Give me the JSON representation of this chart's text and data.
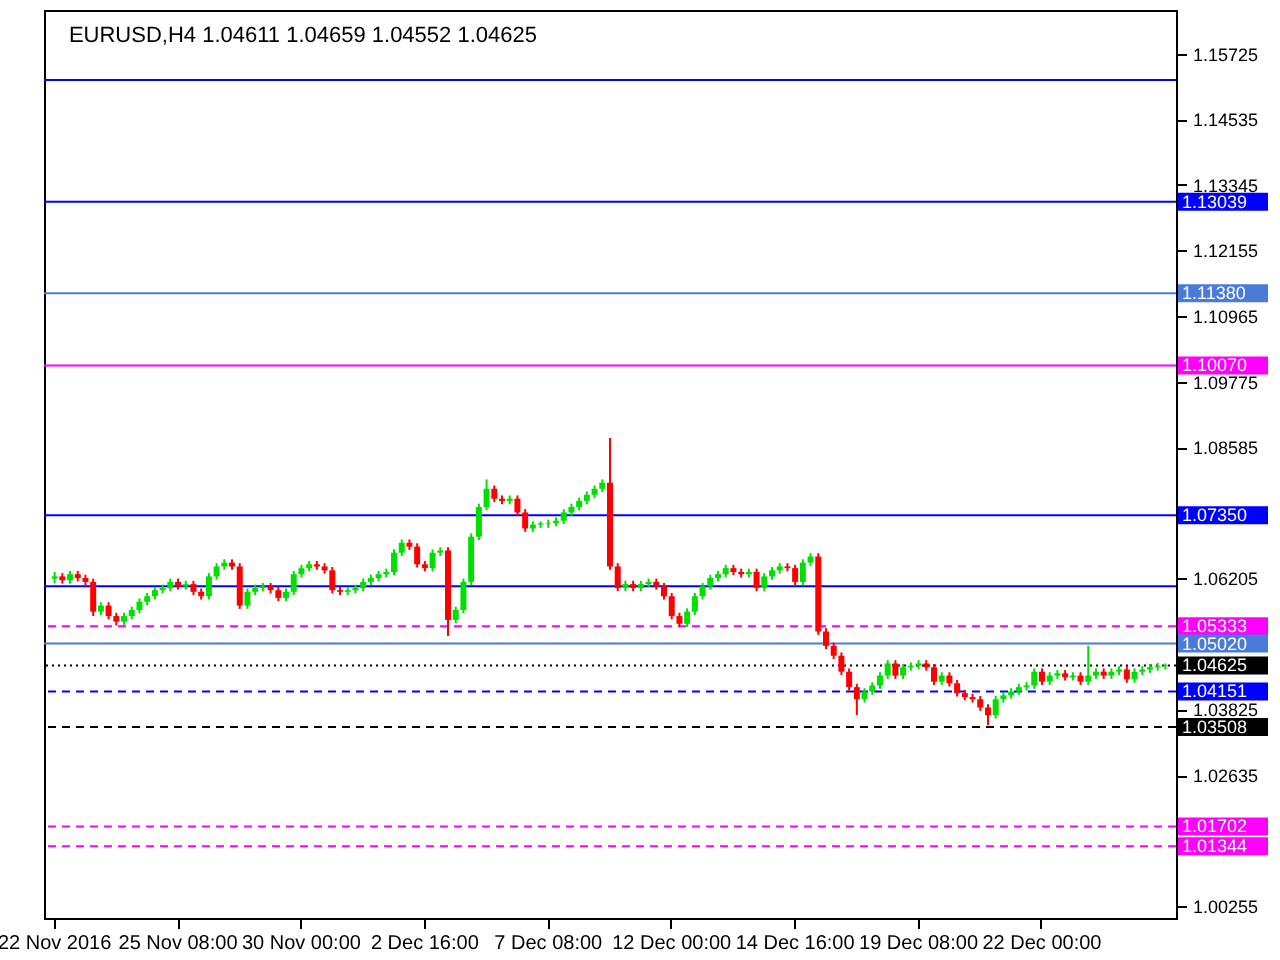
{
  "chart_data": {
    "type": "candlestick",
    "title": "EURUSD,H4  1.04611 1.04659 1.04552 1.04625",
    "categories": [
      "22 Nov 2016",
      null,
      null,
      null,
      null,
      null,
      null,
      null,
      null,
      null,
      null,
      null,
      null,
      null,
      null,
      null,
      "25 Nov 08:00",
      null,
      null,
      null,
      null,
      null,
      null,
      null,
      null,
      null,
      null,
      null,
      null,
      null,
      null,
      null,
      "30 Nov 00:00",
      null,
      null,
      null,
      null,
      null,
      null,
      null,
      null,
      null,
      null,
      null,
      null,
      null,
      null,
      null,
      "2 Dec 16:00",
      null,
      null,
      null,
      null,
      null,
      null,
      null,
      null,
      null,
      null,
      null,
      null,
      null,
      null,
      null,
      "7 Dec 08:00",
      null,
      null,
      null,
      null,
      null,
      null,
      null,
      null,
      null,
      null,
      null,
      null,
      null,
      null,
      null,
      "12 Dec 00:00",
      null,
      null,
      null,
      null,
      null,
      null,
      null,
      null,
      null,
      null,
      null,
      null,
      null,
      null,
      null,
      "14 Dec 16:00",
      null,
      null,
      null,
      null,
      null,
      null,
      null,
      null,
      null,
      null,
      null,
      null,
      null,
      null,
      null,
      "19 Dec 08:00",
      null,
      null,
      null,
      null,
      null,
      null,
      null,
      null,
      null,
      null,
      null,
      null,
      null,
      null,
      null,
      "22 Dec 00:00",
      null,
      null,
      null,
      null,
      null,
      null,
      null,
      null,
      null,
      null,
      null,
      null,
      null,
      null,
      null,
      null
    ],
    "ohlc": [
      [
        1.062,
        1.0632,
        1.0612,
        1.0624
      ],
      [
        1.0624,
        1.063,
        1.0611,
        1.0617
      ],
      [
        1.0617,
        1.0634,
        1.0611,
        1.0628
      ],
      [
        1.0628,
        1.0634,
        1.0615,
        1.0621
      ],
      [
        1.0621,
        1.0627,
        1.0608,
        1.0614
      ],
      [
        1.0614,
        1.062,
        1.0552,
        1.056
      ],
      [
        1.056,
        1.0577,
        1.0554,
        1.0571
      ],
      [
        1.0571,
        1.0577,
        1.0546,
        1.0552
      ],
      [
        1.0552,
        1.0558,
        1.0535,
        1.0542
      ],
      [
        1.0542,
        1.0558,
        1.0536,
        1.0552
      ],
      [
        1.0552,
        1.0569,
        1.0546,
        1.0563
      ],
      [
        1.0563,
        1.0584,
        1.0557,
        1.0578
      ],
      [
        1.0578,
        1.0594,
        1.0572,
        1.0588
      ],
      [
        1.0588,
        1.0605,
        1.0582,
        1.0599
      ],
      [
        1.0599,
        1.0609,
        1.0593,
        1.0603
      ],
      [
        1.0603,
        1.062,
        1.0597,
        1.0614
      ],
      [
        1.0614,
        1.062,
        1.06,
        1.0606
      ],
      [
        1.0606,
        1.0616,
        1.06,
        1.061
      ],
      [
        1.061,
        1.0616,
        1.059,
        1.0596
      ],
      [
        1.0596,
        1.0602,
        1.0582,
        1.0588
      ],
      [
        1.0588,
        1.063,
        1.0582,
        1.0624
      ],
      [
        1.0624,
        1.0648,
        1.0618,
        1.0642
      ],
      [
        1.0642,
        1.0655,
        1.0636,
        1.0649
      ],
      [
        1.0649,
        1.0655,
        1.0636,
        1.0642
      ],
      [
        1.0642,
        1.0648,
        1.0565,
        1.0571
      ],
      [
        1.0571,
        1.0602,
        1.0565,
        1.0596
      ],
      [
        1.0596,
        1.0609,
        1.059,
        1.0603
      ],
      [
        1.0603,
        1.0612,
        1.0597,
        1.0606
      ],
      [
        1.0606,
        1.0612,
        1.0593,
        1.0599
      ],
      [
        1.0599,
        1.0605,
        1.0579,
        1.0585
      ],
      [
        1.0585,
        1.0602,
        1.0579,
        1.0596
      ],
      [
        1.0596,
        1.0634,
        1.059,
        1.0628
      ],
      [
        1.0628,
        1.0645,
        1.0622,
        1.0639
      ],
      [
        1.0639,
        1.0652,
        1.0633,
        1.0646
      ],
      [
        1.0646,
        1.0652,
        1.0636,
        1.0642
      ],
      [
        1.0642,
        1.0648,
        1.0629,
        1.0635
      ],
      [
        1.0635,
        1.0641,
        1.0593,
        1.0599
      ],
      [
        1.0599,
        1.0605,
        1.059,
        1.0596
      ],
      [
        1.0596,
        1.0605,
        1.059,
        1.0599
      ],
      [
        1.0599,
        1.0609,
        1.0593,
        1.0603
      ],
      [
        1.0603,
        1.062,
        1.0597,
        1.0614
      ],
      [
        1.0614,
        1.0627,
        1.0608,
        1.0621
      ],
      [
        1.0621,
        1.0634,
        1.0615,
        1.0628
      ],
      [
        1.0628,
        1.0638,
        1.0622,
        1.0632
      ],
      [
        1.0632,
        1.0673,
        1.0626,
        1.0667
      ],
      [
        1.0667,
        1.0691,
        1.0661,
        1.0685
      ],
      [
        1.0685,
        1.0691,
        1.0672,
        1.0678
      ],
      [
        1.0678,
        1.0684,
        1.064,
        1.0646
      ],
      [
        1.0646,
        1.0652,
        1.0633,
        1.0639
      ],
      [
        1.0639,
        1.0673,
        1.0633,
        1.0667
      ],
      [
        1.0667,
        1.0677,
        1.0661,
        1.0671
      ],
      [
        1.0671,
        1.0677,
        1.0516,
        1.0545
      ],
      [
        1.0545,
        1.0569,
        1.0539,
        1.0563
      ],
      [
        1.0563,
        1.062,
        1.0557,
        1.0614
      ],
      [
        1.0614,
        1.0702,
        1.0608,
        1.0696
      ],
      [
        1.0696,
        1.0756,
        1.069,
        1.075
      ],
      [
        1.075,
        1.08,
        1.0744,
        1.0783
      ],
      [
        1.0783,
        1.0789,
        1.0759,
        1.0765
      ],
      [
        1.0765,
        1.0771,
        1.0755,
        1.0761
      ],
      [
        1.0761,
        1.0771,
        1.0755,
        1.0765
      ],
      [
        1.0765,
        1.0771,
        1.0734,
        1.074
      ],
      [
        1.074,
        1.0746,
        1.0705,
        1.0711
      ],
      [
        1.0711,
        1.0724,
        1.0705,
        1.0718
      ],
      [
        1.0718,
        1.0724,
        1.0712,
        1.072
      ],
      [
        1.072,
        1.0727,
        1.0712,
        1.0721
      ],
      [
        1.0721,
        1.0731,
        1.0715,
        1.0725
      ],
      [
        1.0725,
        1.0746,
        1.0719,
        1.074
      ],
      [
        1.074,
        1.0756,
        1.0734,
        1.075
      ],
      [
        1.075,
        1.0767,
        1.0744,
        1.0761
      ],
      [
        1.0761,
        1.0778,
        1.0755,
        1.0772
      ],
      [
        1.0772,
        1.0789,
        1.0766,
        1.0783
      ],
      [
        1.0783,
        1.08,
        1.0777,
        1.0794
      ],
      [
        1.0794,
        1.0875,
        1.0636,
        1.0642
      ],
      [
        1.0642,
        1.0648,
        1.0597,
        1.0603
      ],
      [
        1.0603,
        1.0616,
        1.0597,
        1.061
      ],
      [
        1.061,
        1.0616,
        1.0597,
        1.0603
      ],
      [
        1.0603,
        1.0616,
        1.0597,
        1.061
      ],
      [
        1.061,
        1.062,
        1.0604,
        1.0614
      ],
      [
        1.0614,
        1.062,
        1.06,
        1.0606
      ],
      [
        1.0606,
        1.0612,
        1.0582,
        1.0588
      ],
      [
        1.0588,
        1.0594,
        1.0546,
        1.0552
      ],
      [
        1.0552,
        1.0558,
        1.0532,
        1.0538
      ],
      [
        1.0538,
        1.0566,
        1.0532,
        1.056
      ],
      [
        1.056,
        1.0594,
        1.0554,
        1.0588
      ],
      [
        1.0588,
        1.0612,
        1.0582,
        1.0606
      ],
      [
        1.0606,
        1.0627,
        1.06,
        1.0621
      ],
      [
        1.0621,
        1.0634,
        1.0615,
        1.0628
      ],
      [
        1.0628,
        1.0645,
        1.0622,
        1.0639
      ],
      [
        1.0639,
        1.0645,
        1.0626,
        1.0632
      ],
      [
        1.0632,
        1.0638,
        1.0622,
        1.0628
      ],
      [
        1.0628,
        1.0638,
        1.0622,
        1.0632
      ],
      [
        1.0632,
        1.0638,
        1.0597,
        1.0603
      ],
      [
        1.0603,
        1.063,
        1.0597,
        1.0624
      ],
      [
        1.0624,
        1.0641,
        1.0618,
        1.0635
      ],
      [
        1.0635,
        1.0648,
        1.0629,
        1.0642
      ],
      [
        1.0642,
        1.0648,
        1.0633,
        1.0639
      ],
      [
        1.0639,
        1.0645,
        1.0608,
        1.0614
      ],
      [
        1.0614,
        1.0655,
        1.0608,
        1.0649
      ],
      [
        1.0649,
        1.0666,
        1.0643,
        1.066
      ],
      [
        1.066,
        1.0666,
        1.0518,
        1.0524
      ],
      [
        1.0524,
        1.053,
        1.0492,
        1.0498
      ],
      [
        1.0498,
        1.0504,
        1.0474,
        1.048
      ],
      [
        1.048,
        1.0486,
        1.0445,
        1.0451
      ],
      [
        1.0451,
        1.0457,
        1.0417,
        1.0423
      ],
      [
        1.0423,
        1.0429,
        1.0372,
        1.0401
      ],
      [
        1.0401,
        1.0421,
        1.0395,
        1.0415
      ],
      [
        1.0415,
        1.0432,
        1.0409,
        1.0426
      ],
      [
        1.0426,
        1.045,
        1.042,
        1.0444
      ],
      [
        1.0444,
        1.0472,
        1.0438,
        1.0466
      ],
      [
        1.0466,
        1.0472,
        1.0438,
        1.0444
      ],
      [
        1.0444,
        1.0465,
        1.0438,
        1.0459
      ],
      [
        1.0459,
        1.0468,
        1.0453,
        1.0462
      ],
      [
        1.0462,
        1.0472,
        1.0456,
        1.0466
      ],
      [
        1.0466,
        1.0472,
        1.0453,
        1.0459
      ],
      [
        1.0459,
        1.0465,
        1.0427,
        1.0433
      ],
      [
        1.0433,
        1.045,
        1.0427,
        1.0444
      ],
      [
        1.0444,
        1.045,
        1.0424,
        1.043
      ],
      [
        1.043,
        1.0436,
        1.0406,
        1.0412
      ],
      [
        1.0412,
        1.0418,
        1.0399,
        1.0405
      ],
      [
        1.0405,
        1.0411,
        1.0395,
        1.0401
      ],
      [
        1.0401,
        1.0407,
        1.038,
        1.0386
      ],
      [
        1.0386,
        1.0392,
        1.0354,
        1.0372
      ],
      [
        1.0372,
        1.0407,
        1.0366,
        1.0401
      ],
      [
        1.0401,
        1.0414,
        1.0395,
        1.0408
      ],
      [
        1.0408,
        1.0421,
        1.0402,
        1.0415
      ],
      [
        1.0415,
        1.0429,
        1.0409,
        1.0423
      ],
      [
        1.0423,
        1.0432,
        1.0417,
        1.0426
      ],
      [
        1.0426,
        1.0457,
        1.042,
        1.0451
      ],
      [
        1.0451,
        1.0457,
        1.0427,
        1.0433
      ],
      [
        1.0433,
        1.045,
        1.0427,
        1.0444
      ],
      [
        1.0444,
        1.0454,
        1.0438,
        1.0448
      ],
      [
        1.0448,
        1.0454,
        1.0435,
        1.0441
      ],
      [
        1.0441,
        1.045,
        1.0435,
        1.0444
      ],
      [
        1.0444,
        1.045,
        1.0427,
        1.0433
      ],
      [
        1.0433,
        1.0498,
        1.0427,
        1.0444
      ],
      [
        1.0444,
        1.0457,
        1.0438,
        1.0451
      ],
      [
        1.0451,
        1.0457,
        1.0438,
        1.0444
      ],
      [
        1.0444,
        1.0457,
        1.0438,
        1.0451
      ],
      [
        1.0451,
        1.0461,
        1.0445,
        1.0455
      ],
      [
        1.0455,
        1.0461,
        1.0431,
        1.0437
      ],
      [
        1.0437,
        1.0457,
        1.0431,
        1.0451
      ],
      [
        1.0451,
        1.0461,
        1.0445,
        1.0455
      ],
      [
        1.0455,
        1.0465,
        1.0449,
        1.0459
      ],
      [
        1.0459,
        1.0467,
        1.0453,
        1.0461
      ],
      [
        1.04611,
        1.04659,
        1.04552,
        1.04625
      ]
    ],
    "ylim": [
      1.0004,
      1.1652
    ],
    "yticks": [
      1.00255,
      1.02635,
      1.03825,
      1.06205,
      1.08585,
      1.09775,
      1.10965,
      1.12155,
      1.13345,
      1.14535,
      1.15725
    ],
    "ref_lines": [
      {
        "axis": "y",
        "value": 1.1525,
        "color": "#0000ff"
      },
      {
        "axis": "y",
        "value": 1.13039,
        "label": "1.13039",
        "color": "#0000ff"
      },
      {
        "axis": "y",
        "value": 1.1138,
        "label": "1.11380",
        "color": "#4a7bd8"
      },
      {
        "axis": "y",
        "value": 1.1007,
        "label": "1.10070",
        "color": "#ff00ff"
      },
      {
        "axis": "y",
        "value": 1.0735,
        "label": "1.07350",
        "color": "#0000ff"
      },
      {
        "axis": "y",
        "value": 1.0606,
        "color": "#0000ff"
      },
      {
        "axis": "y",
        "value": 1.05333,
        "label": "1.05333",
        "color": "#ff00ff",
        "line_style": "dashed"
      },
      {
        "axis": "y",
        "value": 1.0502,
        "label": "1.05020",
        "color": "#4a7bd8"
      },
      {
        "axis": "y",
        "value": 1.04625,
        "label": "1.04625",
        "color": "#000000",
        "line_style": "dotted"
      },
      {
        "axis": "y",
        "value": 1.04151,
        "label": "1.04151",
        "color": "#0000ff",
        "line_style": "dashed"
      },
      {
        "axis": "y",
        "value": 1.03508,
        "label": "1.03508",
        "color": "#000000",
        "line_style": "dashed"
      },
      {
        "axis": "y",
        "value": 1.01702,
        "label": "1.01702",
        "color": "#ff00ff",
        "line_style": "dashed"
      },
      {
        "axis": "y",
        "value": 1.01344,
        "label": "1.01344",
        "color": "#ff00ff",
        "line_style": "dashed"
      }
    ],
    "grid": false
  }
}
